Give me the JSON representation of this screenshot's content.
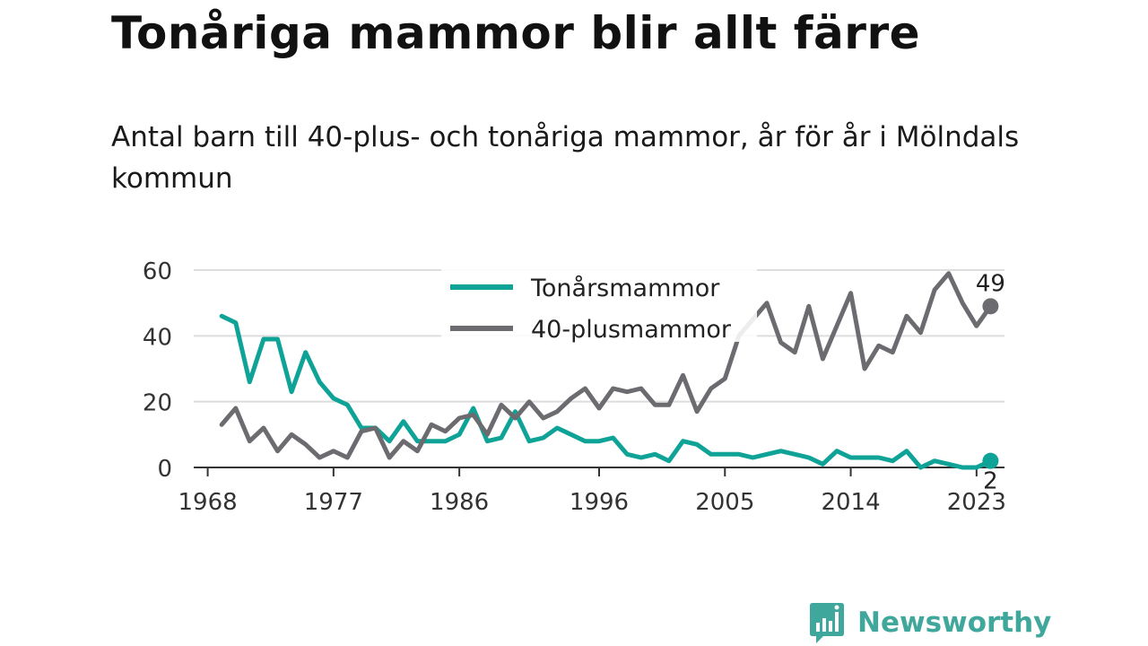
{
  "title": "Tonåriga mammor blir allt färre",
  "subtitle": "Antal barn till 40-plus- och tonåriga mammor, år för år i Mölndals kommun",
  "brand": {
    "name": "Newsworthy",
    "icon": "newsworthy-chart-bubble-icon"
  },
  "colors": {
    "teen": "#0fa398",
    "forty": "#6b6b70",
    "grid": "#dddddd",
    "axis": "#333333"
  },
  "chart_data": {
    "type": "line",
    "x": [
      1969,
      1970,
      1971,
      1972,
      1973,
      1974,
      1975,
      1976,
      1977,
      1978,
      1979,
      1980,
      1981,
      1982,
      1983,
      1984,
      1985,
      1986,
      1987,
      1988,
      1989,
      1990,
      1991,
      1992,
      1993,
      1994,
      1995,
      1996,
      1997,
      1998,
      1999,
      2000,
      2001,
      2002,
      2003,
      2004,
      2005,
      2006,
      2007,
      2008,
      2009,
      2010,
      2011,
      2012,
      2013,
      2014,
      2015,
      2016,
      2017,
      2018,
      2019,
      2020,
      2021,
      2022,
      2023,
      2024
    ],
    "series": [
      {
        "name": "Tonårsmammor",
        "color": "#0fa398",
        "values": [
          46,
          44,
          26,
          39,
          39,
          23,
          35,
          26,
          21,
          19,
          12,
          12,
          8,
          14,
          8,
          8,
          8,
          10,
          18,
          8,
          9,
          17,
          8,
          9,
          12,
          10,
          8,
          8,
          9,
          4,
          3,
          4,
          2,
          8,
          7,
          4,
          4,
          4,
          3,
          4,
          5,
          4,
          3,
          1,
          5,
          3,
          3,
          3,
          2,
          5,
          0,
          2,
          1,
          0,
          0,
          2
        ]
      },
      {
        "name": "40-plusmammor",
        "color": "#6b6b70",
        "values": [
          13,
          18,
          8,
          12,
          5,
          10,
          7,
          3,
          5,
          3,
          11,
          12,
          3,
          8,
          5,
          13,
          11,
          15,
          16,
          10,
          19,
          15,
          20,
          15,
          17,
          21,
          24,
          18,
          24,
          23,
          24,
          19,
          19,
          28,
          17,
          24,
          27,
          40,
          45,
          50,
          38,
          35,
          49,
          33,
          43,
          53,
          30,
          37,
          35,
          46,
          41,
          54,
          59,
          50,
          43,
          49
        ]
      }
    ],
    "xticks": [
      "1968",
      "1977",
      "1986",
      "1996",
      "2005",
      "2014",
      "2023"
    ],
    "yticks": [
      "0",
      "20",
      "40",
      "60"
    ],
    "ylim": [
      0,
      60
    ],
    "xlim": [
      1967,
      2025
    ],
    "grid": true,
    "legend": "top-center",
    "end_labels": {
      "Tonårsmammor": "2",
      "40-plusmammor": "49"
    }
  }
}
